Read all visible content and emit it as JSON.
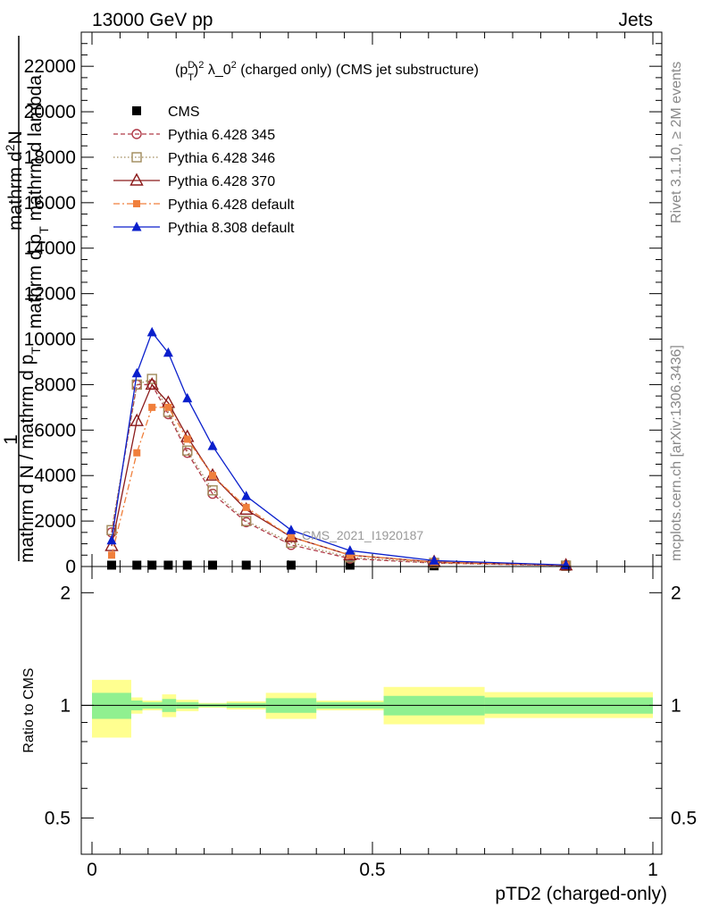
{
  "header": {
    "left": "13000 GeV pp",
    "right": "Jets"
  },
  "side_labels": {
    "top": "Rivet 3.1.10, ≥ 2M events",
    "bottom": "mcplots.cern.ch [arXiv:1306.3436]"
  },
  "watermark": "CMS_2021_I1920187",
  "chart_data": [
    {
      "type": "line",
      "title": "(p_T^D)^2 λ_0^2 (charged only) (CMS jet substructure)",
      "title_parts": {
        "a": "(p",
        "sup1": "D",
        "sub1": "T",
        "b": ")",
        "sup2": "2",
        "c": " λ_0",
        "sup3": "2",
        "d": " (charged only) (CMS jet substructure)"
      },
      "ylabel": "1 / mathrm d N / mathrm d p_T mathrm d^2N / mathrm d p_T mathrm d lambda",
      "ylabel_parts": {
        "one": "1",
        "top_line": "mathrm d",
        "top_line_sup": "2",
        "top_line_end": "N",
        "second_line": "mathrm d p",
        "second_line_sub": "T",
        "second_line_end": " mathrm d lambda",
        "bottom_line": "mathrm d N / mathrm d p",
        "bottom_line_sub": "T"
      },
      "xlim": [
        0,
        1
      ],
      "ylim": [
        0,
        23500
      ],
      "y_ticks": [
        {
          "v": 0,
          "label": "0"
        },
        {
          "v": 2000,
          "label": "2000"
        },
        {
          "v": 4000,
          "label": "4000"
        },
        {
          "v": 6000,
          "label": "6000"
        },
        {
          "v": 8000,
          "label": "8000"
        },
        {
          "v": 10000,
          "label": "10000"
        },
        {
          "v": 12000,
          "label": "12000"
        },
        {
          "v": 14000,
          "label": "14000"
        },
        {
          "v": 16000,
          "label": "16000"
        },
        {
          "v": 18000,
          "label": "18000"
        },
        {
          "v": 20000,
          "label": "20000"
        },
        {
          "v": 22000,
          "label": "22000"
        }
      ],
      "legend_position": "top-left",
      "series": [
        {
          "name": "CMS",
          "color": "#000000",
          "marker": "filled-square",
          "line": "none",
          "x": [
            0.035,
            0.08,
            0.107,
            0.136,
            0.17,
            0.215,
            0.275,
            0.355,
            0.46,
            0.61,
            0.845
          ],
          "y": [
            60,
            60,
            60,
            60,
            60,
            60,
            60,
            60,
            60,
            30,
            10
          ]
        },
        {
          "name": "Pythia 6.428 345",
          "color": "#b03a48",
          "marker": "open-circle",
          "line": "dashed",
          "x": [
            0.035,
            0.08,
            0.107,
            0.136,
            0.17,
            0.215,
            0.275,
            0.355,
            0.46,
            0.61,
            0.845
          ],
          "y": [
            1500,
            8000,
            8000,
            6700,
            5000,
            3200,
            1950,
            950,
            350,
            150,
            40
          ]
        },
        {
          "name": "Pythia 6.428 346",
          "color": "#a08a5a",
          "marker": "open-square",
          "line": "dotted",
          "x": [
            0.035,
            0.08,
            0.107,
            0.136,
            0.17,
            0.215,
            0.275,
            0.355,
            0.46,
            0.61,
            0.845
          ],
          "y": [
            1600,
            8000,
            8250,
            6800,
            5100,
            3350,
            2000,
            1050,
            400,
            160,
            40
          ]
        },
        {
          "name": "Pythia 6.428 370",
          "color": "#8b1a1a",
          "marker": "open-triangle",
          "line": "solid",
          "x": [
            0.035,
            0.08,
            0.107,
            0.136,
            0.17,
            0.215,
            0.275,
            0.355,
            0.46,
            0.61,
            0.845
          ],
          "y": [
            900,
            6400,
            8000,
            7200,
            5700,
            4000,
            2500,
            1300,
            500,
            200,
            50
          ]
        },
        {
          "name": "Pythia 6.428 default",
          "color": "#f07f3c",
          "marker": "filled-square-small",
          "line": "dashdot",
          "x": [
            0.035,
            0.08,
            0.107,
            0.136,
            0.17,
            0.215,
            0.275,
            0.355,
            0.46,
            0.61,
            0.845
          ],
          "y": [
            500,
            5000,
            7000,
            7000,
            5600,
            4000,
            2600,
            1300,
            500,
            190,
            60
          ]
        },
        {
          "name": "Pythia 8.308 default",
          "color": "#0a1fcc",
          "marker": "filled-triangle",
          "line": "solid",
          "x": [
            0.035,
            0.08,
            0.107,
            0.136,
            0.17,
            0.215,
            0.275,
            0.355,
            0.46,
            0.61,
            0.845
          ],
          "y": [
            1150,
            8500,
            10300,
            9400,
            7400,
            5300,
            3100,
            1600,
            700,
            260,
            70
          ]
        }
      ]
    },
    {
      "type": "area",
      "xlabel": "pTD2 (charged-only)",
      "ylabel": "Ratio to CMS",
      "xlim": [
        0,
        1
      ],
      "y_scale": "log",
      "ylim": [
        0.4,
        2.35
      ],
      "x_ticks": [
        {
          "v": 0,
          "label": "0"
        },
        {
          "v": 0.5,
          "label": "0.5"
        },
        {
          "v": 1,
          "label": "1"
        }
      ],
      "y_ticks": [
        {
          "v": 0.5,
          "label": "0.5"
        },
        {
          "v": 1,
          "label": "1"
        },
        {
          "v": 2,
          "label": "2"
        }
      ],
      "reference_line": 1,
      "bands": {
        "x_edges": [
          0.0,
          0.07,
          0.09,
          0.125,
          0.15,
          0.19,
          0.24,
          0.31,
          0.4,
          0.52,
          0.7,
          1.0
        ],
        "stat": {
          "color": "#90f090",
          "low": [
            0.92,
            0.97,
            0.98,
            0.96,
            0.98,
            0.99,
            0.985,
            0.955,
            0.98,
            0.94,
            0.95
          ],
          "high": [
            1.08,
            1.03,
            1.02,
            1.04,
            1.02,
            1.01,
            1.015,
            1.045,
            1.02,
            1.06,
            1.05
          ]
        },
        "total": {
          "color": "#ffff90",
          "low": [
            0.82,
            0.95,
            0.97,
            0.93,
            0.965,
            0.985,
            0.975,
            0.92,
            0.97,
            0.89,
            0.925
          ],
          "high": [
            1.17,
            1.05,
            1.03,
            1.07,
            1.035,
            1.015,
            1.025,
            1.08,
            1.03,
            1.12,
            1.085
          ]
        }
      }
    }
  ]
}
